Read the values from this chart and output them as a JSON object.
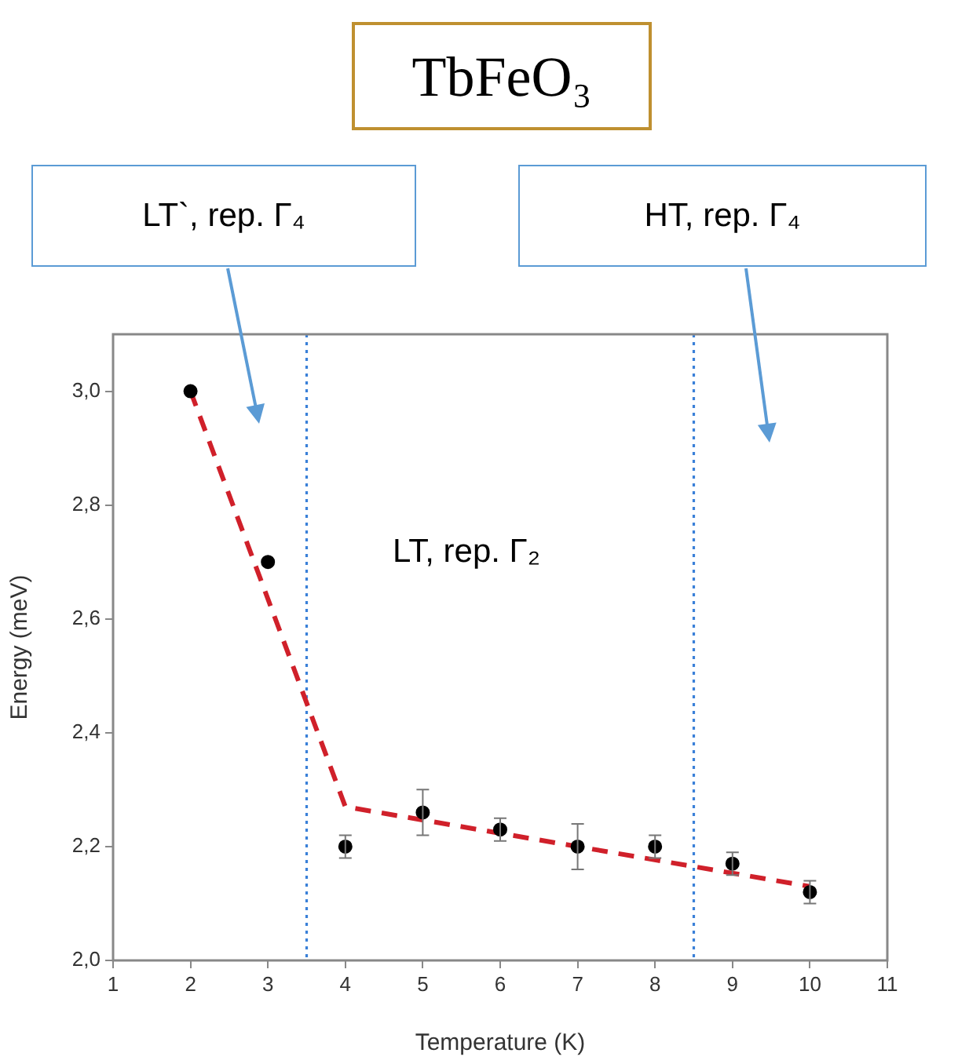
{
  "chart_data": {
    "type": "scatter",
    "title": "TbFeO₃",
    "xlabel": "Temperature (K)",
    "ylabel": "Energy (meV)",
    "annotations": [
      "LT`, rep. Γ₄",
      "HT, rep. Γ₄",
      "LT, rep. Γ₂"
    ],
    "xlim": [
      1,
      11
    ],
    "xticks": [
      1,
      2,
      3,
      4,
      5,
      6,
      7,
      8,
      9,
      10,
      11
    ],
    "ylim": [
      2.0,
      3.1
    ],
    "yticks": [
      {
        "value": 2.0,
        "label": "2,0"
      },
      {
        "value": 2.2,
        "label": "2,2"
      },
      {
        "value": 2.4,
        "label": "2,4"
      },
      {
        "value": 2.6,
        "label": "2,6"
      },
      {
        "value": 2.8,
        "label": "2,8"
      },
      {
        "value": 3.0,
        "label": "3,0"
      }
    ],
    "grid": false,
    "legend": false,
    "marker": "circle",
    "series": [
      {
        "color": "#000000",
        "x": [
          2,
          3,
          4,
          5,
          6,
          7,
          8,
          9,
          10
        ],
        "values": [
          3.0,
          2.7,
          2.2,
          2.26,
          2.23,
          2.2,
          2.2,
          2.17,
          2.12
        ],
        "errors": [
          null,
          null,
          0.02,
          0.04,
          0.02,
          0.04,
          0.02,
          0.02,
          0.02
        ]
      },
      {
        "type": "line",
        "color": "#d0202a",
        "line_style": "dashed",
        "marker": "none",
        "x": [
          2,
          4,
          10
        ],
        "values": [
          3.0,
          2.27,
          2.13
        ]
      }
    ],
    "ref_lines": [
      {
        "axis": "x",
        "value": 3.5,
        "color": "#3a80d8",
        "line_style": "dotted"
      },
      {
        "axis": "x",
        "value": 8.5,
        "color": "#3a80d8",
        "line_style": "dotted"
      }
    ]
  }
}
